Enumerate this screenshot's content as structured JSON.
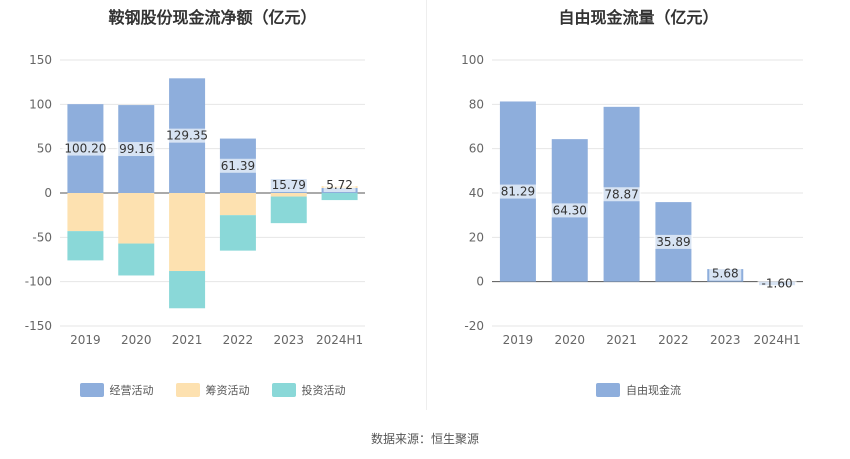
{
  "source_label": "数据来源：恒生聚源",
  "chart_data": [
    {
      "type": "bar",
      "title": "鞍钢股份现金流净额（亿元）",
      "categories": [
        "2019",
        "2020",
        "2021",
        "2022",
        "2023",
        "2024H1"
      ],
      "stacked": true,
      "ylim": [
        -150,
        150
      ],
      "yticks": [
        150,
        100,
        50,
        0,
        -50,
        -100,
        -150
      ],
      "series": [
        {
          "name": "经营活动",
          "color": "#8eaedc",
          "values": [
            100.2,
            99.16,
            129.35,
            61.39,
            15.79,
            5.72
          ]
        },
        {
          "name": "筹资活动",
          "color": "#fde1b0",
          "values": [
            -43,
            -57,
            -88,
            -25,
            -4,
            2
          ]
        },
        {
          "name": "投资活动",
          "color": "#8ad8d8",
          "values": [
            -33,
            -36,
            -42,
            -40,
            -30,
            -8
          ]
        }
      ],
      "data_labels": [
        "100.20",
        "99.16",
        "129.35",
        "61.39",
        "15.79",
        "5.72"
      ]
    },
    {
      "type": "bar",
      "title": "自由现金流量（亿元）",
      "categories": [
        "2019",
        "2020",
        "2021",
        "2022",
        "2023",
        "2024H1"
      ],
      "ylim": [
        -20,
        100
      ],
      "yticks": [
        100,
        80,
        60,
        40,
        20,
        0,
        -20
      ],
      "series": [
        {
          "name": "自由现金流",
          "color": "#8eaedc",
          "values": [
            81.29,
            64.3,
            78.87,
            35.89,
            5.68,
            -1.6
          ]
        }
      ],
      "data_labels": [
        "81.29",
        "64.30",
        "78.87",
        "35.89",
        "5.68",
        "-1.60"
      ]
    }
  ]
}
